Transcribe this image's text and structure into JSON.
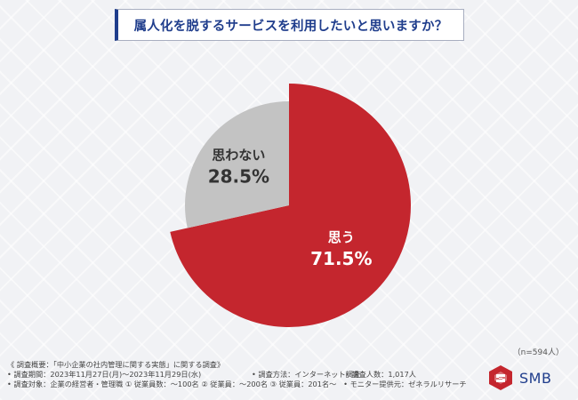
{
  "header": {
    "title": "属人化を脱するサービスを利用したいと思いますか？"
  },
  "chart_data": {
    "type": "pie",
    "title": "属人化を脱するサービスを利用したいと思いますか？",
    "sample_size_label": "（n=594人）",
    "slices": [
      {
        "label": "思う",
        "value": 71.5,
        "display": "71.5%",
        "color": "#c4262e"
      },
      {
        "label": "思わない",
        "value": 28.5,
        "display": "28.5%",
        "color": "#c3c3c3"
      }
    ]
  },
  "survey": {
    "overview": "《 調査概要：「中小企業の社内管理に関する実態」に関する調査》",
    "period": "• 調査期間：2023年11月27日(月)～2023年11月29日(水)",
    "method": "• 調査方法：インターネット調査",
    "respondents": "• 調査人数：1,017人",
    "target": "• 調査対象：企業の経営者・管理職 ① 従業員数：～100名 ② 従業員：～200名 ③ 従業員：201名～",
    "provider": "• モニター提供元：ゼネラルリサーチ"
  },
  "brand": {
    "name": "SMB",
    "color": "#1f3d8c",
    "accent": "#c4262e"
  }
}
